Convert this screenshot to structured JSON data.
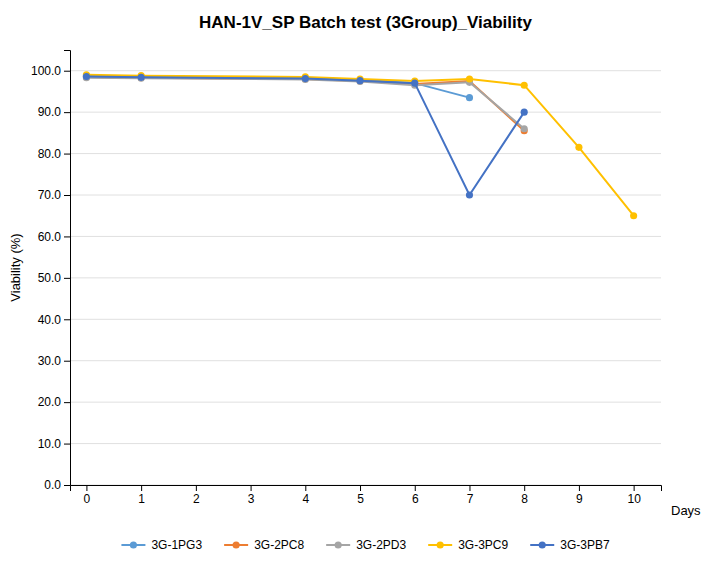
{
  "chart_data": {
    "type": "line",
    "title": "HAN-1V_SP Batch test (3Group)_Viability",
    "y_label": "Viability (%)",
    "x_label": "Days",
    "xlim": [
      -0.3,
      10.5
    ],
    "ylim": [
      0,
      105
    ],
    "xticks": [
      0,
      1,
      2,
      3,
      4,
      5,
      6,
      7,
      8,
      9,
      10
    ],
    "yticks": [
      {
        "value": 0,
        "label": "0.0"
      },
      {
        "value": 10,
        "label": "10.0"
      },
      {
        "value": 20,
        "label": "20.0"
      },
      {
        "value": 30,
        "label": "30.0"
      },
      {
        "value": 40,
        "label": "40.0"
      },
      {
        "value": 50,
        "label": "50.0"
      },
      {
        "value": 60,
        "label": "60.0"
      },
      {
        "value": 70,
        "label": "70.0"
      },
      {
        "value": 80,
        "label": "80.0"
      },
      {
        "value": 90,
        "label": "90.0"
      },
      {
        "value": 100,
        "label": "100.0"
      }
    ],
    "grid": true,
    "legend": "bottom",
    "series": [
      {
        "name": "3G-1PG3",
        "color": "#5B9BD5",
        "marker": "circle",
        "x": [
          0,
          1,
          4,
          5,
          6,
          7
        ],
        "values": [
          98.8,
          98.5,
          98.2,
          97.8,
          97.0,
          93.5
        ]
      },
      {
        "name": "3G-2PC8",
        "color": "#ED7D31",
        "marker": "circle",
        "x": [
          0,
          1,
          4,
          5,
          6,
          7,
          8
        ],
        "values": [
          98.5,
          98.3,
          98.0,
          97.5,
          96.8,
          97.5,
          85.5
        ]
      },
      {
        "name": "3G-2PD3",
        "color": "#A5A5A5",
        "marker": "circle",
        "x": [
          0,
          1,
          4,
          5,
          6,
          7,
          8
        ],
        "values": [
          98.3,
          98.2,
          97.9,
          97.4,
          96.5,
          97.2,
          86.0
        ]
      },
      {
        "name": "3G-3PC9",
        "color": "#FFC000",
        "marker": "circle",
        "x": [
          0,
          1,
          4,
          5,
          6,
          7,
          8,
          9,
          10
        ],
        "values": [
          99.0,
          98.8,
          98.5,
          98.0,
          97.5,
          98.0,
          96.5,
          81.5,
          65.0
        ]
      },
      {
        "name": "3G-3PB7",
        "color": "#4472C4",
        "marker": "circle",
        "x": [
          0,
          1,
          4,
          5,
          6,
          7,
          8
        ],
        "values": [
          98.6,
          98.4,
          98.1,
          97.6,
          97.0,
          70.0,
          90.0
        ]
      }
    ]
  }
}
